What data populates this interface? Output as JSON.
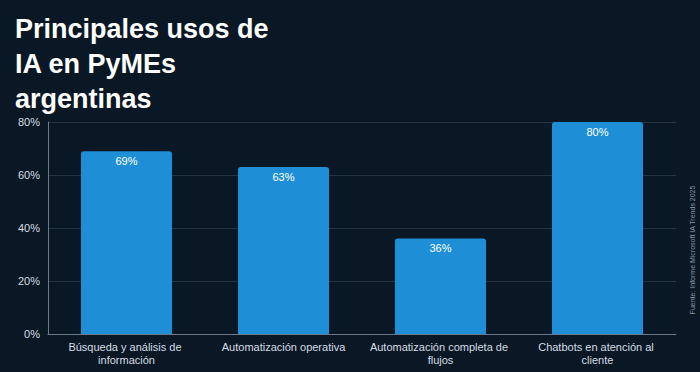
{
  "chart_data": {
    "type": "bar",
    "title": "Principales usos de IA en PyMEs argentinas",
    "categories": [
      "Búsqueda y análisis de información",
      "Automatización operativa",
      "Automatización completa de flujos",
      "Chatbots en atención al cliente"
    ],
    "values": [
      69,
      63,
      36,
      80
    ],
    "value_labels": [
      "69%",
      "63%",
      "36%",
      "80%"
    ],
    "data_labels": true,
    "color": "#1e8fd6",
    "ylim": [
      0,
      80
    ],
    "yticks": [
      {
        "value": 0,
        "label": "0%"
      },
      {
        "value": 20,
        "label": "20%"
      },
      {
        "value": 40,
        "label": "40%"
      },
      {
        "value": 60,
        "label": "60%"
      },
      {
        "value": 80,
        "label": "80%"
      }
    ],
    "grid": true,
    "annotations": [
      "Fuente: Informe Microsoft IA Trends 2025"
    ]
  }
}
